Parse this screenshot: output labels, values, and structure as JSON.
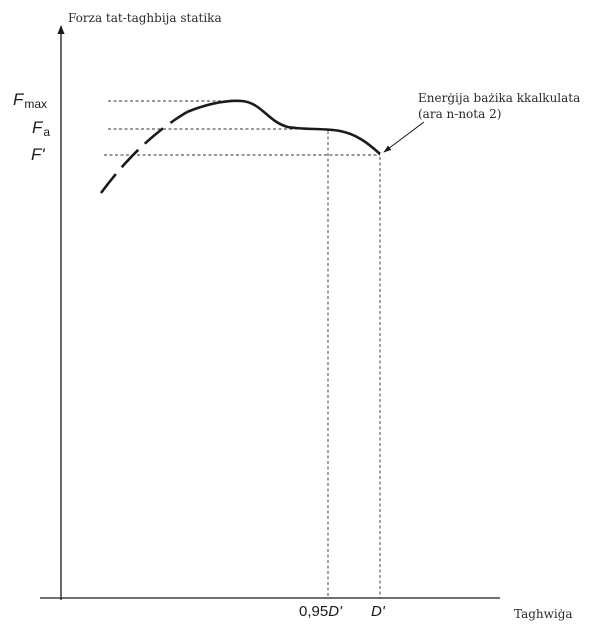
{
  "diagram": {
    "y_axis_label": "Forza tat-taghbija statika",
    "x_axis_label": "Taghwiġa",
    "y_levels": {
      "fmax": {
        "main": "F",
        "sub": "max"
      },
      "fa": {
        "main": "F",
        "sub": "a"
      },
      "fprime": {
        "main": "F'"
      }
    },
    "x_ticks": {
      "d095": {
        "prefix": "0,95",
        "var": "D'"
      },
      "dprime": {
        "var": "D'"
      }
    },
    "annotation": {
      "line1": "Enerġija bażika kkalkulata",
      "line2": "(ara n-nota 2)"
    }
  }
}
